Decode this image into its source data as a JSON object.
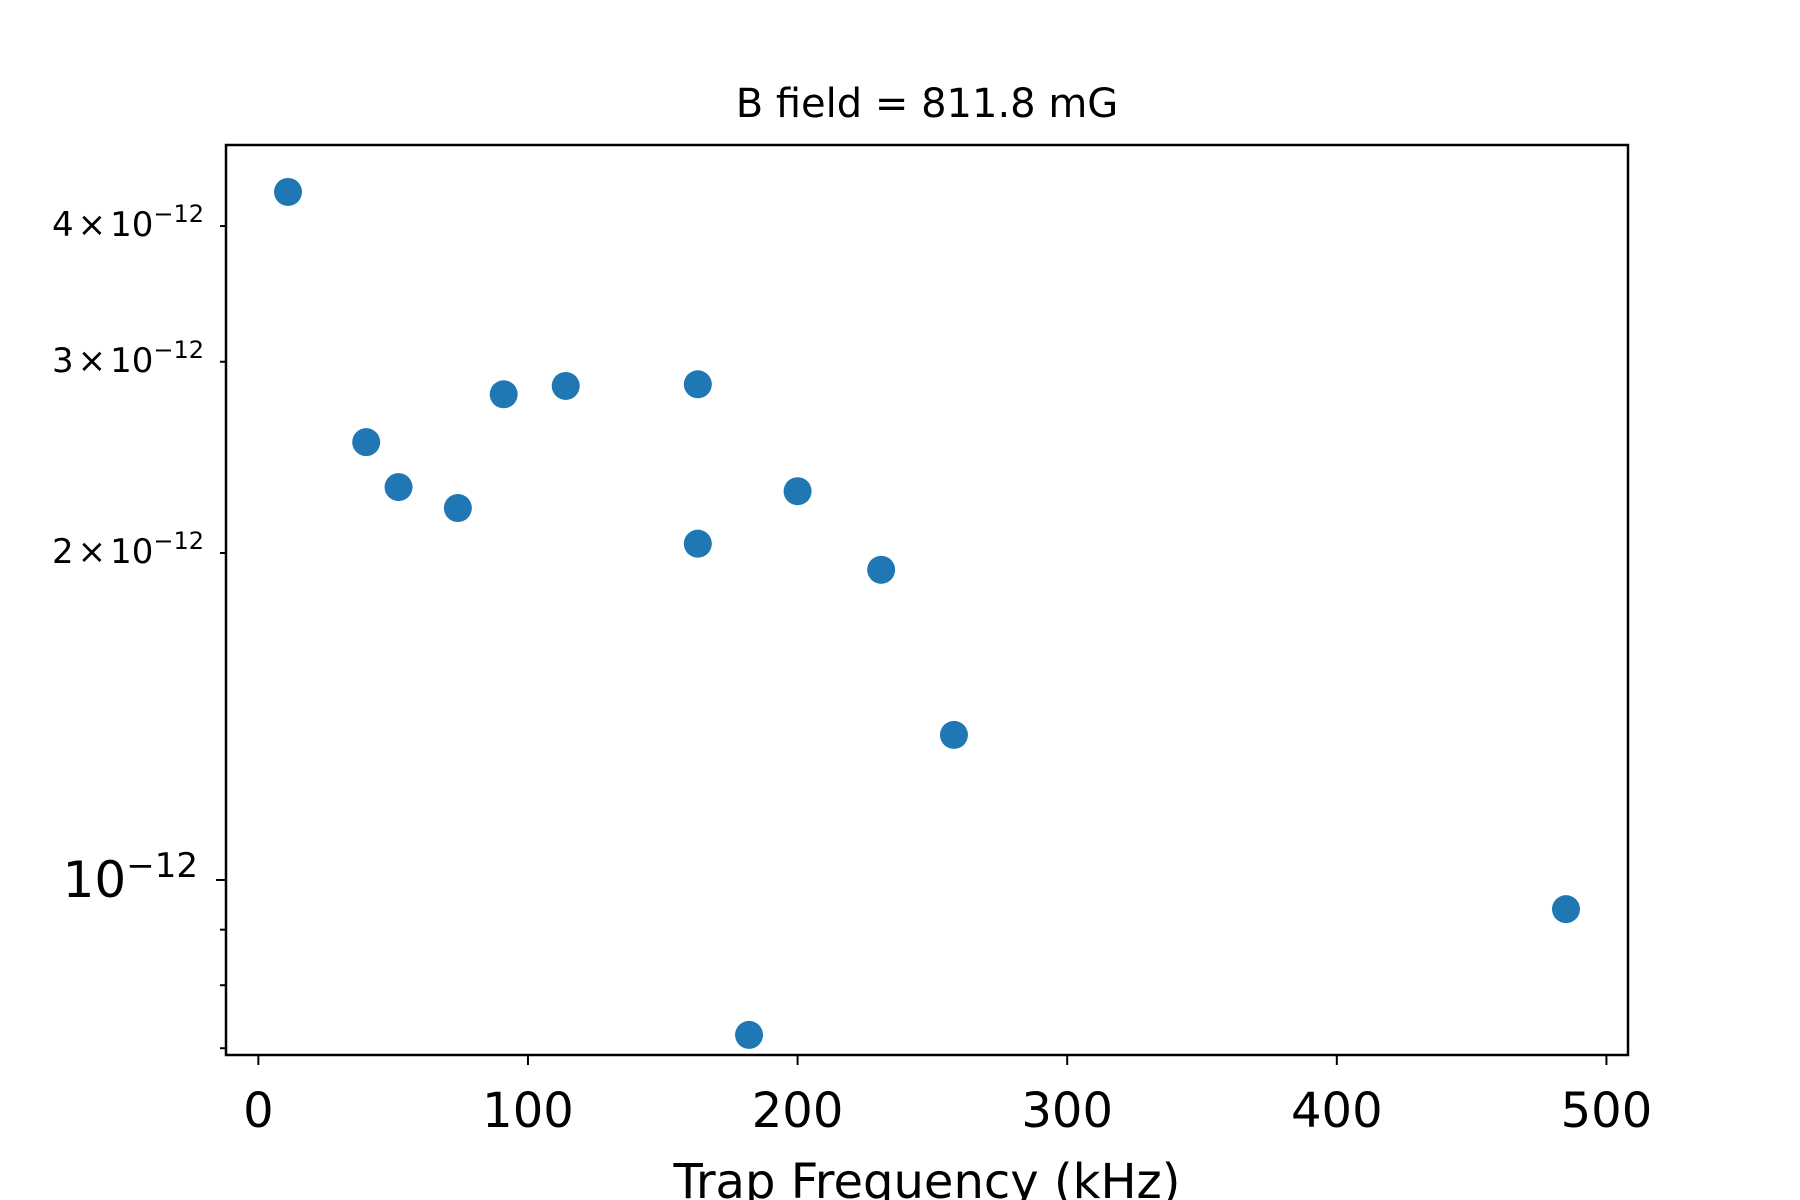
{
  "chart_data": {
    "type": "scatter",
    "title": "B field = 811.8 mG",
    "xlabel": "Trap Frequency (kHz)",
    "ylabel": "",
    "yscale": "log",
    "xlim": [
      -12,
      508
    ],
    "ylim": [
      6.9e-13,
      4.75e-12
    ],
    "grid": false,
    "marker_color": "#1f77b4",
    "x_ticks": [
      {
        "value": 0,
        "label": "0"
      },
      {
        "value": 100,
        "label": "100"
      },
      {
        "value": 200,
        "label": "200"
      },
      {
        "value": 300,
        "label": "300"
      },
      {
        "value": 400,
        "label": "400"
      },
      {
        "value": 500,
        "label": "500"
      }
    ],
    "y_major_ticks": [
      {
        "value": 1e-12,
        "mantissa": "",
        "base": "10",
        "exponent": "−12"
      }
    ],
    "y_minor_labeled_ticks": [
      {
        "value": 2e-12,
        "mantissa": "2",
        "times": "×",
        "base": "10",
        "exponent": "−12"
      },
      {
        "value": 3e-12,
        "mantissa": "3",
        "times": "×",
        "base": "10",
        "exponent": "−12"
      },
      {
        "value": 4e-12,
        "mantissa": "4",
        "times": "×",
        "base": "10",
        "exponent": "−12"
      }
    ],
    "y_minor_unlabeled_ticks": [
      7e-13,
      8e-13,
      9e-13
    ],
    "points": [
      {
        "x": 11,
        "y": 4.3e-12
      },
      {
        "x": 40,
        "y": 2.53e-12
      },
      {
        "x": 52,
        "y": 2.3e-12
      },
      {
        "x": 74,
        "y": 2.2e-12
      },
      {
        "x": 91,
        "y": 2.8e-12
      },
      {
        "x": 114,
        "y": 2.85e-12
      },
      {
        "x": 163,
        "y": 2.86e-12
      },
      {
        "x": 163,
        "y": 2.04e-12
      },
      {
        "x": 182,
        "y": 7.2e-13
      },
      {
        "x": 200,
        "y": 2.28e-12
      },
      {
        "x": 231,
        "y": 1.93e-12
      },
      {
        "x": 258,
        "y": 1.36e-12
      },
      {
        "x": 485,
        "y": 9.4e-13
      }
    ]
  }
}
